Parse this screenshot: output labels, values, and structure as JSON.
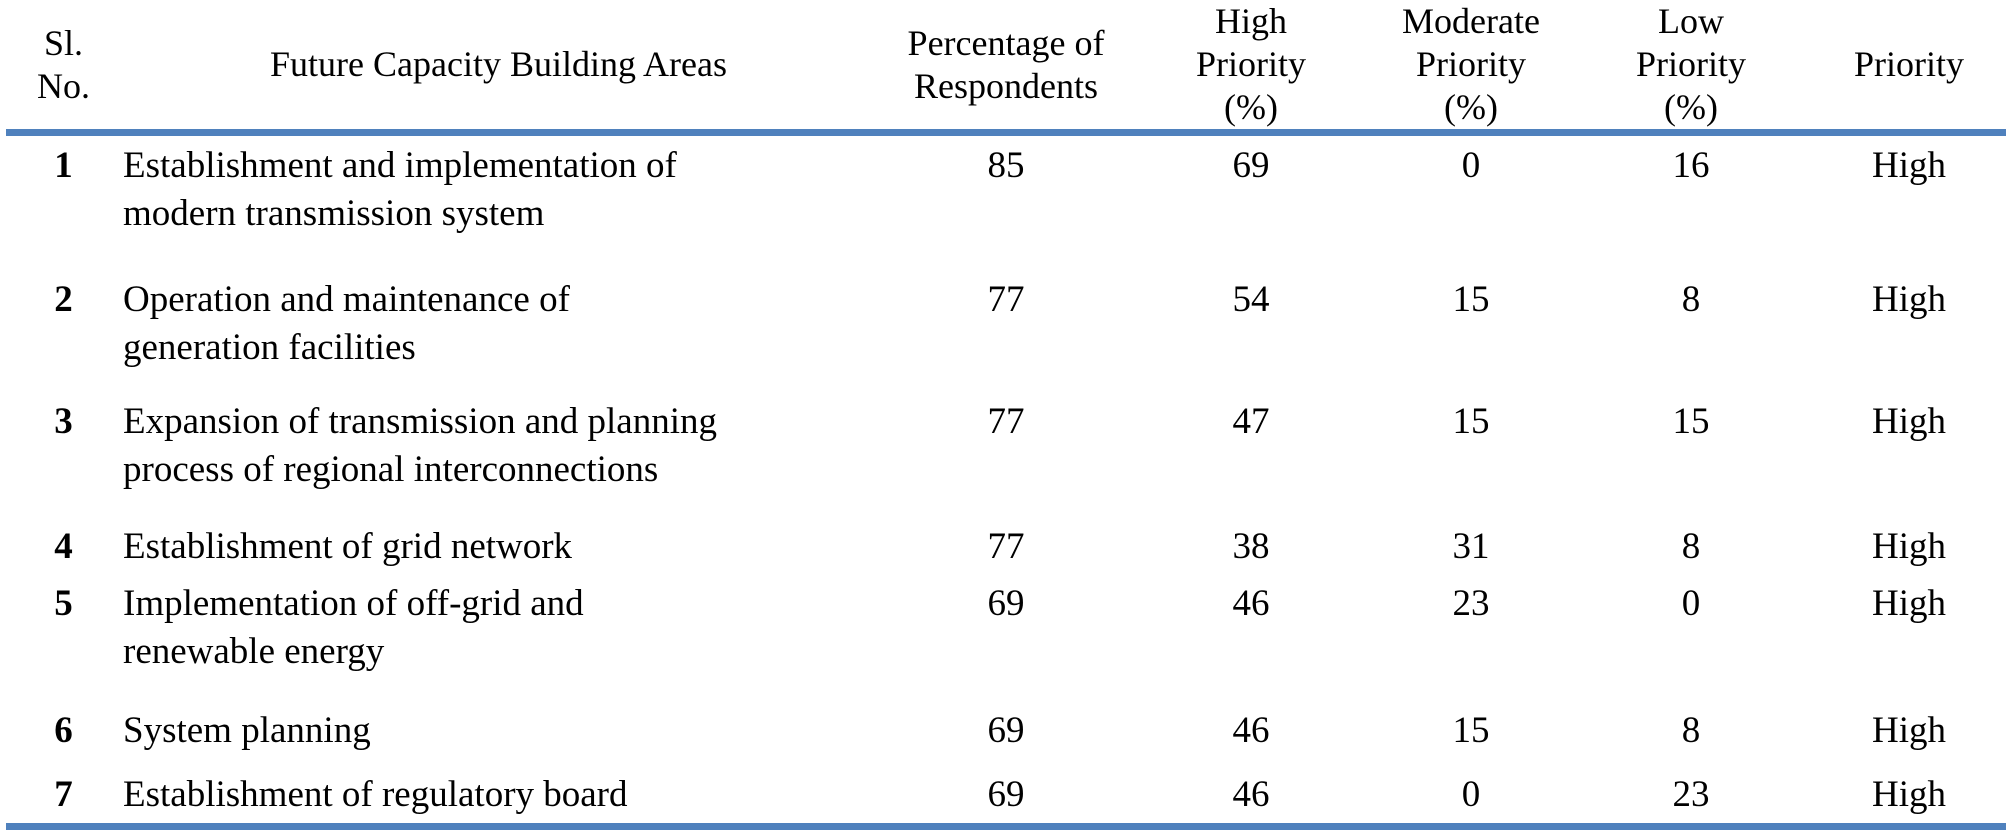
{
  "colors": {
    "accent": "#4F81BD",
    "text": "#000000",
    "background": "#FFFFFF"
  },
  "table": {
    "columns": [
      {
        "id": "sl",
        "label": "Sl.\nNo."
      },
      {
        "id": "area",
        "label": "Future Capacity Building Areas"
      },
      {
        "id": "pct",
        "label": "Percentage of\nRespondents"
      },
      {
        "id": "high",
        "label": "High\nPriority\n(%)"
      },
      {
        "id": "moderate",
        "label": "Moderate\nPriority\n(%)"
      },
      {
        "id": "low",
        "label": "Low\nPriority\n(%)"
      },
      {
        "id": "priority",
        "label": "Priority"
      }
    ],
    "rows": [
      {
        "sl": "1",
        "area": "Establishment and implementation of\nmodern transmission system",
        "pct": "85",
        "high": "69",
        "moderate": "0",
        "low": "16",
        "priority": "High"
      },
      {
        "sl": "2",
        "area": "Operation and maintenance of\ngeneration facilities",
        "pct": "77",
        "high": "54",
        "moderate": "15",
        "low": "8",
        "priority": "High"
      },
      {
        "sl": "3",
        "area": "Expansion of transmission and planning\nprocess of regional interconnections",
        "pct": "77",
        "high": "47",
        "moderate": "15",
        "low": "15",
        "priority": "High"
      },
      {
        "sl": "4",
        "area": "Establishment of grid network",
        "pct": "77",
        "high": "38",
        "moderate": "31",
        "low": "8",
        "priority": "High"
      },
      {
        "sl": "5",
        "area": "Implementation of off-grid and\nrenewable energy",
        "pct": "69",
        "high": "46",
        "moderate": "23",
        "low": "0",
        "priority": "High"
      },
      {
        "sl": "6",
        "area": "System planning",
        "pct": "69",
        "high": "46",
        "moderate": "15",
        "low": "8",
        "priority": "High"
      },
      {
        "sl": "7",
        "area": "Establishment of regulatory board",
        "pct": "69",
        "high": "46",
        "moderate": "0",
        "low": "23",
        "priority": "High"
      }
    ]
  }
}
